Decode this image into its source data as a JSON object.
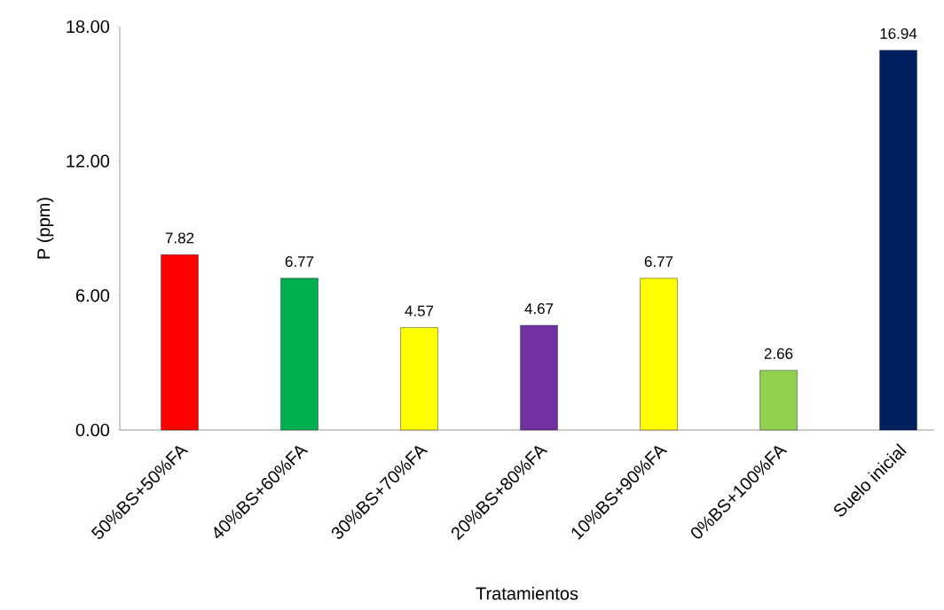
{
  "chart_data": {
    "type": "bar",
    "xlabel": "Tratamientos",
    "ylabel": "P (ppm)",
    "categories": [
      "50%BS+50%FA",
      "40%BS+60%FA",
      "30%BS+70%FA",
      "20%BS+80%FA",
      "10%BS+90%FA",
      "0%BS+100%FA",
      "Suelo inicial"
    ],
    "values": [
      7.82,
      6.77,
      4.57,
      4.67,
      6.77,
      2.66,
      16.94
    ],
    "colors": [
      "#ff0000",
      "#00b050",
      "#ffff00",
      "#7030a0",
      "#ffff00",
      "#92d050",
      "#002060"
    ],
    "ylim": [
      0,
      18
    ],
    "yticks": [
      {
        "value": 0,
        "label": "0.00"
      },
      {
        "value": 6,
        "label": "6.00"
      },
      {
        "value": 12,
        "label": "12.00"
      },
      {
        "value": 18,
        "label": "18.00"
      }
    ],
    "data_labels": true
  }
}
